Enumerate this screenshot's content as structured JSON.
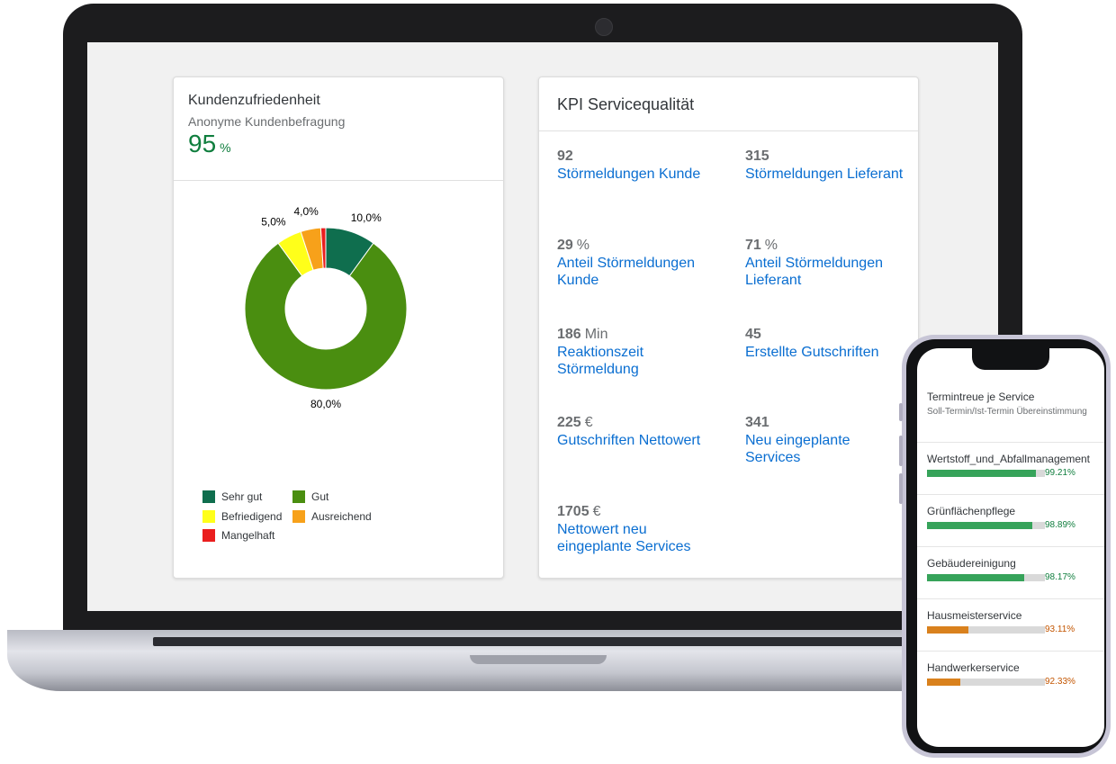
{
  "satisfaction_card": {
    "title": "Kundenzufriedenheit",
    "subtitle": "Anonyme Kundenbefragung",
    "kpi_value": "95",
    "kpi_unit": "%"
  },
  "chart_data": {
    "type": "pie",
    "donut": true,
    "categories": [
      "Sehr gut",
      "Gut",
      "Befriedigend",
      "Ausreichend",
      "Mangelhaft"
    ],
    "values": [
      10.0,
      80.0,
      5.0,
      4.0,
      1.0
    ],
    "data_labels": [
      "10,0%",
      "80,0%",
      "5,0%",
      "4,0%",
      ""
    ],
    "colors": [
      "#0f6e4e",
      "#4a8e10",
      "#ffff1a",
      "#f7a11a",
      "#ea1e1e"
    ],
    "legend_position": "bottom-left"
  },
  "kpi_card": {
    "title": "KPI Servicequalität",
    "items": [
      {
        "value": "92",
        "unit": "",
        "label": "Störmeldungen Kunde"
      },
      {
        "value": "315",
        "unit": "",
        "label": "Störmeldungen Lieferant"
      },
      {
        "value": "29",
        "unit": "%",
        "label": "Anteil Störmeldungen Kunde"
      },
      {
        "value": "71",
        "unit": "%",
        "label": "Anteil Störmeldungen Lieferant"
      },
      {
        "value": "186",
        "unit": "Min",
        "label": "Reaktionszeit Störmeldung"
      },
      {
        "value": "45",
        "unit": "",
        "label": "Erstellte Gutschriften"
      },
      {
        "value": "225",
        "unit": "€",
        "label": "Gutschriften Nettowert"
      },
      {
        "value": "341",
        "unit": "",
        "label": "Neu eingeplante Services"
      },
      {
        "value": "1705",
        "unit": "€",
        "label": "Nettowert neu eingeplante Services"
      }
    ]
  },
  "phone": {
    "title": "Termintreue je Service",
    "subtitle": "Soll-Termin/Ist-Termin Übereinstimmung",
    "rows": [
      {
        "label": "Wertstoff_und_Abfallmanagement",
        "value": 99.21,
        "value_text": "99.21%",
        "color": "#107e3e",
        "bar_color": "#36a35a"
      },
      {
        "label": "Grünflächenpflege",
        "value": 98.89,
        "value_text": "98.89%",
        "color": "#107e3e",
        "bar_color": "#36a35a"
      },
      {
        "label": "Gebäudereinigung",
        "value": 98.17,
        "value_text": "98.17%",
        "color": "#107e3e",
        "bar_color": "#36a35a"
      },
      {
        "label": "Hausmeisterservice",
        "value": 93.11,
        "value_text": "93.11%",
        "color": "#c35500",
        "bar_color": "#d9811d"
      },
      {
        "label": "Handwerkerservice",
        "value": 92.33,
        "value_text": "92.33%",
        "color": "#c35500",
        "bar_color": "#d9811d"
      }
    ]
  }
}
